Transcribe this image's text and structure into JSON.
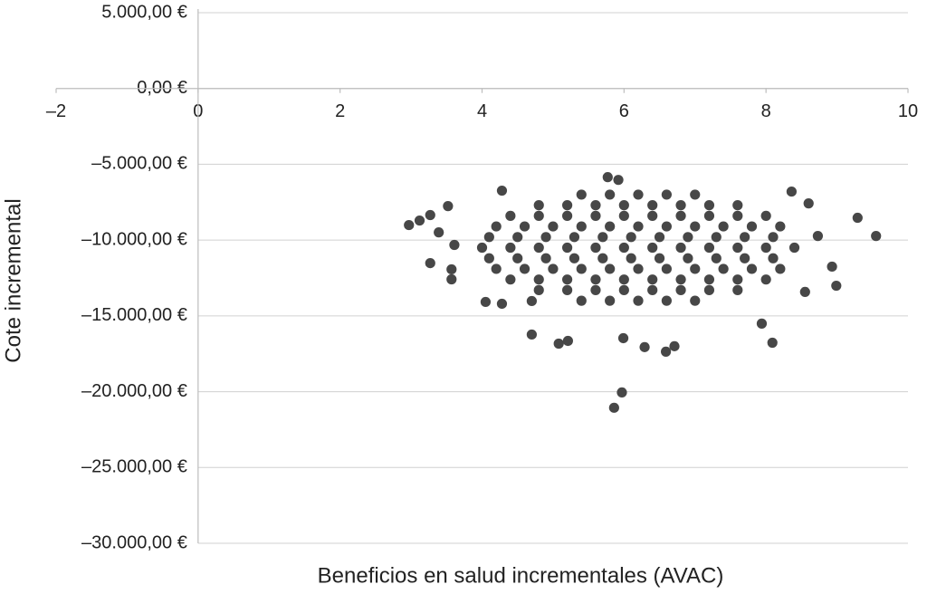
{
  "chart_data": {
    "type": "scatter",
    "x_label": "Beneficios en salud incrementales (AVAC)",
    "y_label": "Cote incremental",
    "color": "#474747",
    "grid": true,
    "xlim": [
      -2,
      10
    ],
    "xticks": [
      {
        "value": -2,
        "label": "–2"
      },
      0,
      2,
      4,
      6,
      8,
      10
    ],
    "ylim": [
      -30000,
      5000
    ],
    "yticks": [
      {
        "value": 5000,
        "label": "5.000,00 €"
      },
      {
        "value": 0,
        "label": "0,00 €"
      },
      {
        "value": -5000,
        "label": "–5.000,00 €"
      },
      {
        "value": -10000,
        "label": "–10.000,00 €"
      },
      {
        "value": -15000,
        "label": "–15.000,00 €"
      },
      {
        "value": -20000,
        "label": "–20.000,00 €"
      },
      {
        "value": -25000,
        "label": "–25.000,00 €"
      },
      {
        "value": -30000,
        "label": "–30.000,00 €"
      }
    ],
    "x": [
      2.97,
      3.12,
      3.27,
      3.39,
      3.27,
      3.52,
      3.57,
      3.57,
      3.61,
      4.7,
      5.08,
      5.21,
      5.86,
      5.97,
      6.29,
      6.59,
      6.71,
      5.99,
      8.09,
      9.29,
      9.55,
      8.99,
      8.93,
      8.73,
      5.77,
      5.92,
      4.28,
      4.05,
      4.7,
      7.94,
      8.55,
      8.36,
      8.6,
      4.28,
      5.4,
      5.8,
      6.2,
      6.6,
      7.0,
      4.8,
      5.2,
      5.6,
      6.0,
      6.4,
      6.8,
      7.2,
      7.6,
      4.4,
      4.8,
      5.2,
      5.6,
      6.0,
      6.4,
      6.8,
      7.2,
      7.6,
      8.0,
      4.2,
      4.6,
      5.0,
      5.4,
      5.8,
      6.2,
      6.6,
      7.0,
      7.4,
      7.8,
      8.2,
      4.1,
      4.5,
      4.9,
      5.3,
      5.7,
      6.1,
      6.5,
      6.9,
      7.3,
      7.7,
      8.1,
      4.0,
      4.4,
      4.8,
      5.2,
      5.6,
      6.0,
      6.4,
      6.8,
      7.2,
      7.6,
      8.0,
      8.4,
      4.1,
      4.5,
      4.9,
      5.3,
      5.7,
      6.1,
      6.5,
      6.9,
      7.3,
      7.7,
      8.1,
      4.2,
      4.6,
      5.0,
      5.4,
      5.8,
      6.2,
      6.6,
      7.0,
      7.4,
      7.8,
      8.2,
      4.4,
      4.8,
      5.2,
      5.6,
      6.0,
      6.4,
      6.8,
      7.2,
      7.6,
      8.0,
      4.8,
      5.2,
      5.6,
      6.0,
      6.4,
      6.8,
      7.2,
      7.6,
      5.4,
      5.8,
      6.2,
      6.6,
      7.0
    ],
    "values": [
      -9010,
      -8710,
      -8350,
      -9490,
      -11520,
      -7760,
      -12590,
      -11930,
      -10320,
      -16230,
      -16830,
      -16650,
      -21060,
      -20050,
      -17060,
      -17360,
      -17000,
      -16470,
      -16770,
      -8530,
      -9730,
      -13010,
      -11750,
      -9730,
      -5850,
      -6030,
      -14200,
      -14080,
      -14020,
      -15510,
      -13420,
      -6800,
      -7580,
      -6740,
      -7000,
      -7000,
      -7000,
      -7000,
      -7000,
      -7700,
      -7700,
      -7700,
      -7700,
      -7700,
      -7700,
      -7700,
      -7700,
      -8400,
      -8400,
      -8400,
      -8400,
      -8400,
      -8400,
      -8400,
      -8400,
      -8400,
      -8400,
      -9100,
      -9100,
      -9100,
      -9100,
      -9100,
      -9100,
      -9100,
      -9100,
      -9100,
      -9100,
      -9100,
      -9800,
      -9800,
      -9800,
      -9800,
      -9800,
      -9800,
      -9800,
      -9800,
      -9800,
      -9800,
      -9800,
      -10500,
      -10500,
      -10500,
      -10500,
      -10500,
      -10500,
      -10500,
      -10500,
      -10500,
      -10500,
      -10500,
      -10500,
      -11200,
      -11200,
      -11200,
      -11200,
      -11200,
      -11200,
      -11200,
      -11200,
      -11200,
      -11200,
      -11200,
      -11900,
      -11900,
      -11900,
      -11900,
      -11900,
      -11900,
      -11900,
      -11900,
      -11900,
      -11900,
      -11900,
      -12600,
      -12600,
      -12600,
      -12600,
      -12600,
      -12600,
      -12600,
      -12600,
      -12600,
      -12600,
      -13300,
      -13300,
      -13300,
      -13300,
      -13300,
      -13300,
      -13300,
      -13300,
      -14000,
      -14000,
      -14000,
      -14000,
      -14000
    ]
  }
}
